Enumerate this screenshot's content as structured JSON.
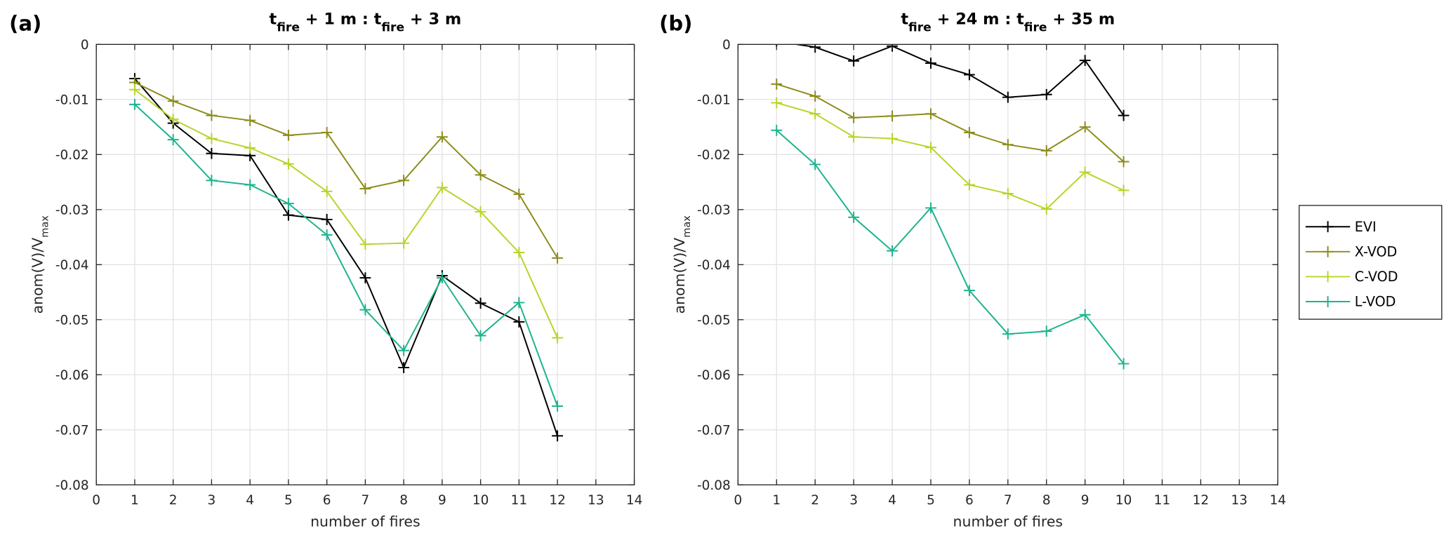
{
  "chart_data": [
    {
      "type": "line",
      "panel_label": "(a)",
      "title_segments": [
        {
          "t": "t"
        },
        {
          "sub": "fire"
        },
        {
          "t": " + 1 m : t"
        },
        {
          "sub": "fire"
        },
        {
          "t": " + 3 m"
        }
      ],
      "xlabel": "number of fires",
      "ylabel_segments": [
        {
          "t": "anom(V)/V"
        },
        {
          "sub": "max"
        }
      ],
      "xlim": [
        0,
        14
      ],
      "ylim": [
        -0.08,
        0
      ],
      "xticks": [
        0,
        1,
        2,
        3,
        4,
        5,
        6,
        7,
        8,
        9,
        10,
        11,
        12,
        13,
        14
      ],
      "yticks": [
        0,
        -0.01,
        -0.02,
        -0.03,
        -0.04,
        -0.05,
        -0.06,
        -0.07,
        -0.08
      ],
      "ytick_labels": [
        "0",
        "-0.01",
        "-0.02",
        "-0.03",
        "-0.04",
        "-0.05",
        "-0.06",
        "-0.07",
        "-0.08"
      ],
      "grid": true,
      "x": [
        1,
        2,
        3,
        4,
        5,
        6,
        7,
        8,
        9,
        10,
        11,
        12
      ],
      "series": [
        {
          "name": "EVI",
          "color": "#000000",
          "values": [
            -0.0062,
            -0.0143,
            -0.0198,
            -0.0202,
            -0.031,
            -0.0318,
            -0.0424,
            -0.0587,
            -0.042,
            -0.047,
            -0.0504,
            -0.0711
          ]
        },
        {
          "name": "X-VOD",
          "color": "#8c8c1c",
          "values": [
            -0.0069,
            -0.0103,
            -0.0129,
            -0.0138,
            -0.0165,
            -0.016,
            -0.0262,
            -0.0247,
            -0.0168,
            -0.0237,
            -0.0272,
            -0.0388
          ]
        },
        {
          "name": "C-VOD",
          "color": "#b8d42a",
          "values": [
            -0.0082,
            -0.0136,
            -0.0171,
            -0.0188,
            -0.0217,
            -0.0267,
            -0.0363,
            -0.0361,
            -0.026,
            -0.0304,
            -0.0378,
            -0.0533
          ]
        },
        {
          "name": "L-VOD",
          "color": "#1db38e",
          "values": [
            -0.0109,
            -0.0173,
            -0.0247,
            -0.0255,
            -0.0289,
            -0.0346,
            -0.0482,
            -0.0556,
            -0.0424,
            -0.0529,
            -0.0469,
            -0.0657
          ]
        }
      ]
    },
    {
      "type": "line",
      "panel_label": "(b)",
      "title_segments": [
        {
          "t": "t"
        },
        {
          "sub": "fire"
        },
        {
          "t": " + 24 m : t"
        },
        {
          "sub": "fire"
        },
        {
          "t": " + 35 m"
        }
      ],
      "xlabel": "number of fires",
      "ylabel_segments": [
        {
          "t": "anom(V)/V"
        },
        {
          "sub": "max"
        }
      ],
      "xlim": [
        0,
        14
      ],
      "ylim": [
        -0.08,
        0
      ],
      "xticks": [
        0,
        1,
        2,
        3,
        4,
        5,
        6,
        7,
        8,
        9,
        10,
        11,
        12,
        13,
        14
      ],
      "yticks": [
        0,
        -0.01,
        -0.02,
        -0.03,
        -0.04,
        -0.05,
        -0.06,
        -0.07,
        -0.08
      ],
      "ytick_labels": [
        "0",
        "-0.01",
        "-0.02",
        "-0.03",
        "-0.04",
        "-0.05",
        "-0.06",
        "-0.07",
        "-0.08"
      ],
      "grid": true,
      "x": [
        1,
        2,
        3,
        4,
        5,
        6,
        7,
        8,
        9,
        10
      ],
      "series": [
        {
          "name": "EVI",
          "color": "#000000",
          "values": [
            0.0006,
            -0.0005,
            -0.003,
            -0.0003,
            -0.0034,
            -0.0055,
            -0.0096,
            -0.0091,
            -0.0029,
            -0.0129
          ]
        },
        {
          "name": "X-VOD",
          "color": "#8c8c1c",
          "values": [
            -0.0072,
            -0.0094,
            -0.0133,
            -0.013,
            -0.0126,
            -0.016,
            -0.0182,
            -0.0193,
            -0.015,
            -0.0213
          ]
        },
        {
          "name": "C-VOD",
          "color": "#b8d42a",
          "values": [
            -0.0106,
            -0.0126,
            -0.0168,
            -0.0171,
            -0.0187,
            -0.0255,
            -0.0271,
            -0.0299,
            -0.0232,
            -0.0265
          ]
        },
        {
          "name": "L-VOD",
          "color": "#1db38e",
          "values": [
            -0.0156,
            -0.0218,
            -0.0314,
            -0.0375,
            -0.0297,
            -0.0447,
            -0.0526,
            -0.0521,
            -0.0491,
            -0.058
          ]
        }
      ]
    }
  ],
  "legend": {
    "placement": "right",
    "entries": [
      {
        "name": "EVI",
        "color": "#000000"
      },
      {
        "name": "X-VOD",
        "color": "#8c8c1c"
      },
      {
        "name": "C-VOD",
        "color": "#b8d42a"
      },
      {
        "name": "L-VOD",
        "color": "#1db38e"
      }
    ]
  }
}
